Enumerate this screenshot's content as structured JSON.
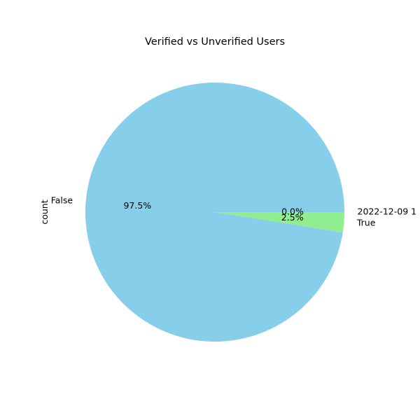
{
  "chart_data": {
    "type": "pie",
    "title": "Verified vs Unverified Users",
    "ylabel": "count",
    "slices": [
      {
        "label": "False",
        "percent_label": "97.5%",
        "value": 97.5,
        "color": "#87CEEB"
      },
      {
        "label": "True",
        "percent_label": "2.5%",
        "value": 2.5,
        "color": "#90EE90"
      },
      {
        "label": "2022-12-09 1",
        "percent_label": "0.0%",
        "value": 0.0,
        "color": "#87CEEB"
      }
    ],
    "start_angle": "0 deg, counter-clockwise",
    "legend": "none"
  }
}
